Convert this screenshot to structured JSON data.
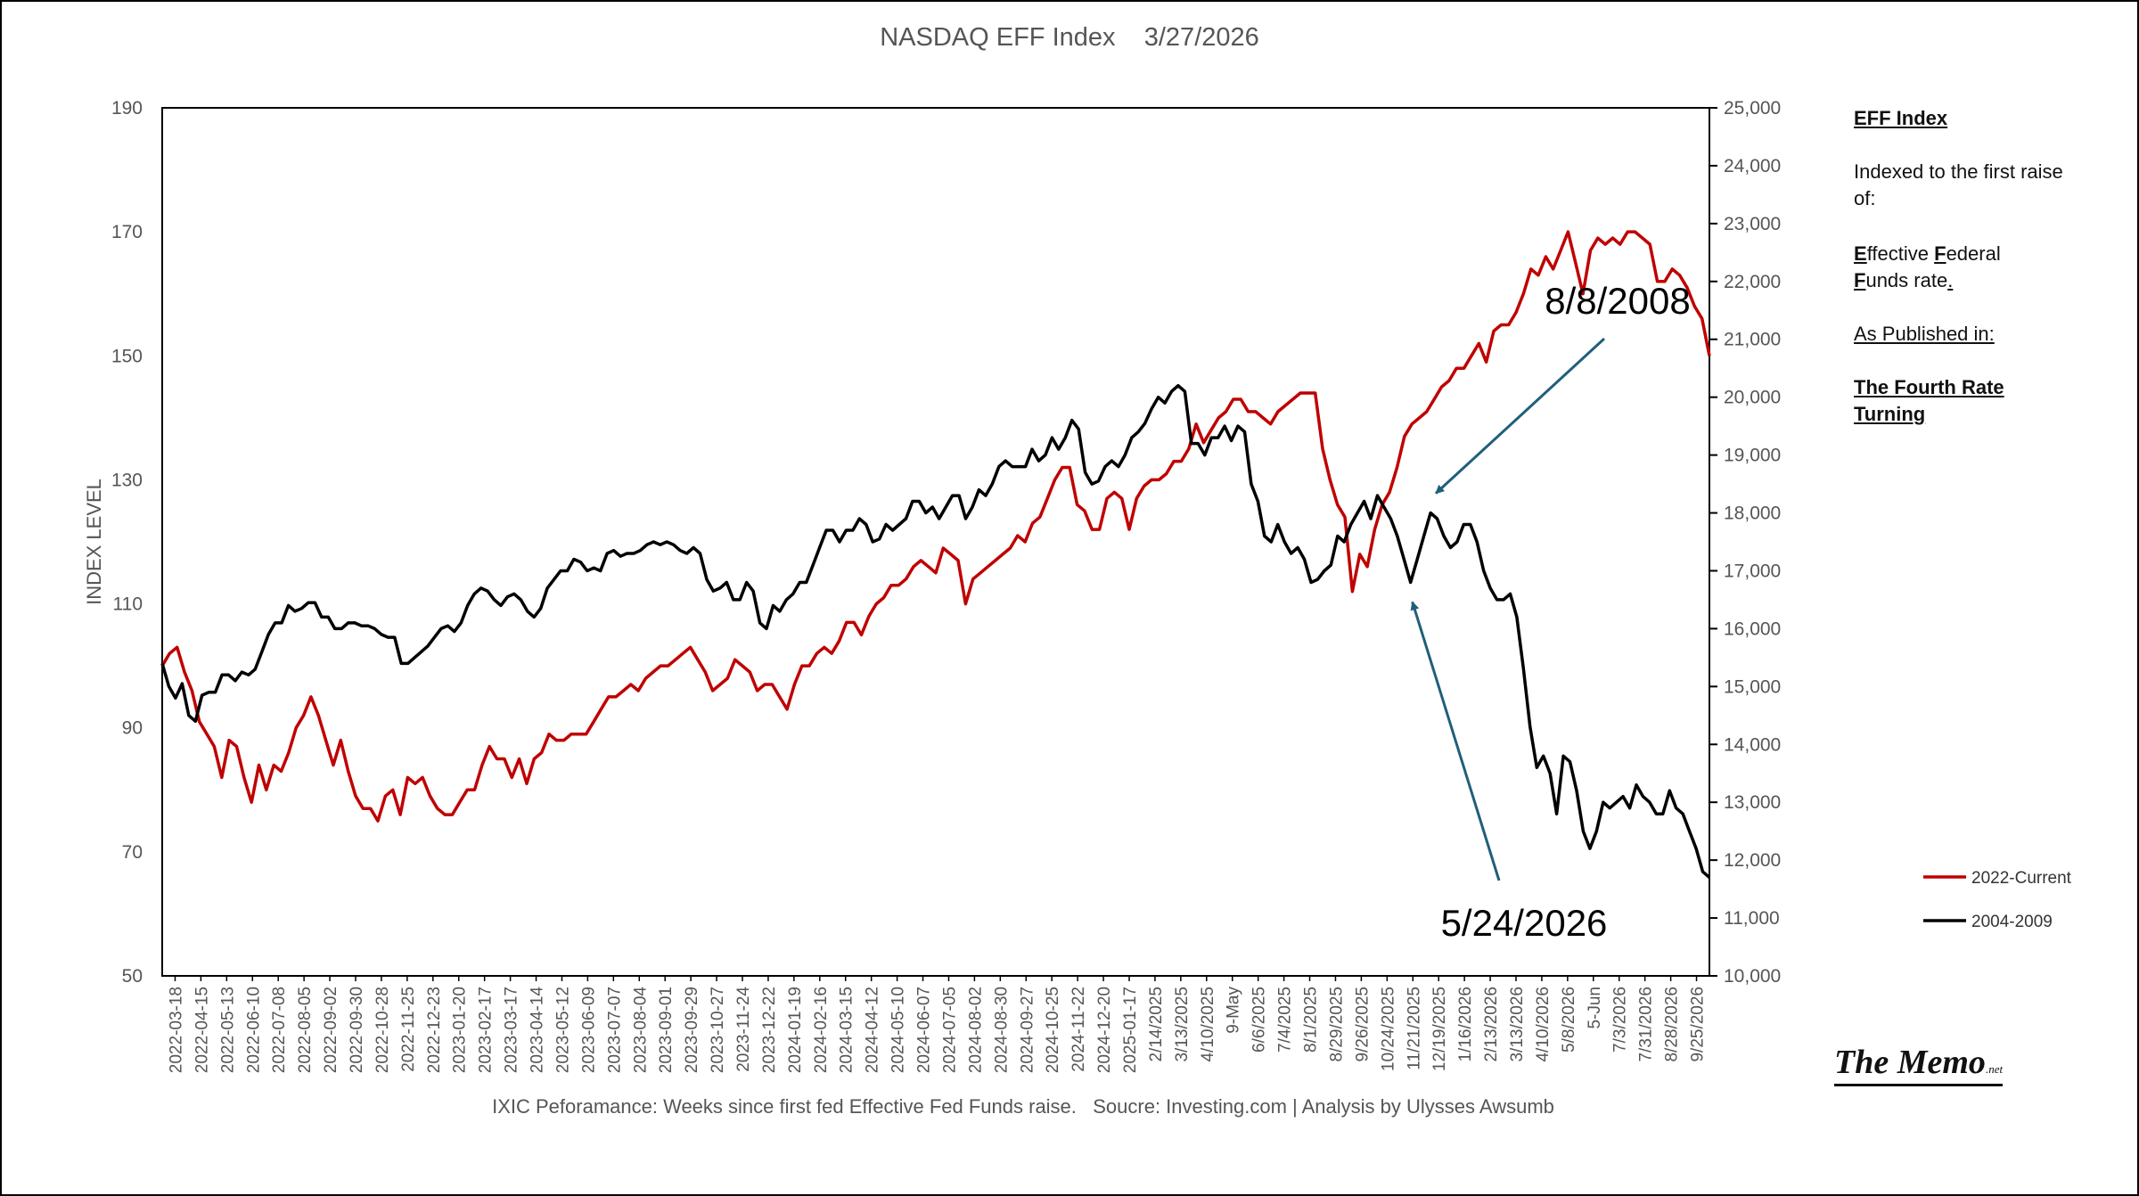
{
  "colors": {
    "series_2022": "#c00000",
    "series_2004": "#000000",
    "arrow": "#1f5f7a",
    "axis_text": "#555555"
  },
  "sidebar": {
    "title": "EFF Index",
    "indexed_text": "Indexed to the first raise of:",
    "effective_lead": "E",
    "effective_rest": "ffective ",
    "federal_lead": "F",
    "federal_rest": "ederal",
    "funds_lead": "F",
    "funds_rest": "unds rate",
    "funds_dot": ".",
    "published": "As Published in:",
    "source_title": "The Fourth Rate Turning"
  },
  "logo": {
    "main": "The Memo",
    "suffix": ".net"
  },
  "chart_data": {
    "type": "line",
    "title": "NASDAQ EFF Index    3/27/2026",
    "footnote": "IXIC Peforamance: Weeks since first fed Effective Fed Funds raise.   Soucre: Investing.com | Analysis by Ulysses Awsumb",
    "ylabel": "INDEX LEVEL",
    "ylim": [
      50,
      190
    ],
    "yticks": [
      50,
      70,
      90,
      110,
      130,
      150,
      170,
      190
    ],
    "y2lim": [
      10000,
      25000
    ],
    "y2ticks": [
      "10,000",
      "11,000",
      "12,000",
      "13,000",
      "14,000",
      "15,000",
      "16,000",
      "17,000",
      "18,000",
      "19,000",
      "20,000",
      "21,000",
      "22,000",
      "23,000",
      "24,000",
      "25,000"
    ],
    "grid": false,
    "legend_position": "bottom-right",
    "x_tick_labels": [
      "2022-03-18",
      "2022-04-15",
      "2022-05-13",
      "2022-06-10",
      "2022-07-08",
      "2022-08-05",
      "2022-09-02",
      "2022-09-30",
      "2022-10-28",
      "2022-11-25",
      "2022-12-23",
      "2023-01-20",
      "2023-02-17",
      "2023-03-17",
      "2023-04-14",
      "2023-05-12",
      "2023-06-09",
      "2023-07-07",
      "2023-08-04",
      "2023-09-01",
      "2023-09-29",
      "2023-10-27",
      "2023-11-24",
      "2023-12-22",
      "2024-01-19",
      "2024-02-16",
      "2024-03-15",
      "2024-04-12",
      "2024-05-10",
      "2024-06-07",
      "2024-07-05",
      "2024-08-02",
      "2024-08-30",
      "2024-09-27",
      "2024-10-25",
      "2024-11-22",
      "2024-12-20",
      "2025-01-17",
      "2/14/2025",
      "3/13/2025",
      "4/10/2025",
      "9-May",
      "6/6/2025",
      "7/4/2025",
      "8/1/2025",
      "8/29/2025",
      "9/26/2025",
      "10/24/2025",
      "11/21/2025",
      "12/19/2025",
      "1/16/2026",
      "2/13/2026",
      "3/13/2026",
      "4/10/2026",
      "5/8/2026",
      "5-Jun",
      "7/3/2026",
      "7/31/2026",
      "8/28/2026",
      "9/25/2026"
    ],
    "series": [
      {
        "name": "2022-Current",
        "axis": "left",
        "color": "#c00000",
        "values": [
          100,
          102,
          103,
          99,
          96,
          91,
          89,
          87,
          82,
          88,
          87,
          82,
          78,
          84,
          80,
          84,
          83,
          86,
          90,
          92,
          95,
          92,
          88,
          84,
          88,
          83,
          79,
          77,
          77,
          75,
          79,
          80,
          76,
          82,
          81,
          82,
          79,
          77,
          76,
          76,
          78,
          80,
          80,
          84,
          87,
          85,
          85,
          82,
          85,
          81,
          85,
          86,
          89,
          88,
          88,
          89,
          89,
          89,
          91,
          93,
          95,
          95,
          96,
          97,
          96,
          98,
          99,
          100,
          100,
          101,
          102,
          103,
          101,
          99,
          96,
          97,
          98,
          101,
          100,
          99,
          96,
          97,
          97,
          95,
          93,
          97,
          100,
          100,
          102,
          103,
          102,
          104,
          107,
          107,
          105,
          108,
          110,
          111,
          113,
          113,
          114,
          116,
          117,
          116,
          115,
          119,
          118,
          117,
          110,
          114,
          115,
          116,
          117,
          118,
          119,
          121,
          120,
          123,
          124,
          127,
          130,
          132,
          132,
          126,
          125,
          122,
          122,
          127,
          128,
          127,
          122,
          127,
          129,
          130,
          130,
          131,
          133,
          133,
          135,
          139,
          136,
          138,
          140,
          141,
          143,
          143,
          141,
          141,
          140,
          139,
          141,
          142,
          143,
          144,
          144,
          144,
          135,
          130,
          126,
          124,
          112,
          118,
          116,
          122,
          126,
          128,
          132,
          137,
          139,
          140,
          141,
          143,
          145,
          146,
          148,
          148,
          150,
          152,
          149,
          154,
          155,
          155,
          157,
          160,
          164,
          163,
          166,
          164,
          167,
          170,
          165,
          160,
          167,
          169,
          168,
          169,
          168,
          170,
          170,
          169,
          168,
          162,
          162,
          164,
          163,
          161,
          158,
          156,
          150
        ]
      },
      {
        "name": "2004-2009",
        "axis": "right",
        "color": "#000000",
        "values": [
          15400,
          15000,
          14800,
          15050,
          14500,
          14400,
          14850,
          14900,
          14900,
          15200,
          15200,
          15100,
          15250,
          15200,
          15300,
          15600,
          15900,
          16100,
          16100,
          16400,
          16300,
          16350,
          16450,
          16450,
          16200,
          16200,
          16000,
          16000,
          16100,
          16100,
          16050,
          16050,
          16000,
          15900,
          15850,
          15850,
          15400,
          15400,
          15500,
          15600,
          15700,
          15850,
          16000,
          16050,
          15950,
          16100,
          16400,
          16600,
          16700,
          16650,
          16500,
          16400,
          16550,
          16600,
          16500,
          16300,
          16200,
          16350,
          16700,
          16850,
          17000,
          17000,
          17200,
          17150,
          17000,
          17050,
          17000,
          17300,
          17350,
          17250,
          17300,
          17300,
          17350,
          17450,
          17500,
          17450,
          17500,
          17450,
          17350,
          17300,
          17400,
          17300,
          16850,
          16650,
          16700,
          16800,
          16500,
          16500,
          16800,
          16650,
          16100,
          16000,
          16400,
          16300,
          16500,
          16600,
          16800,
          16800,
          17100,
          17400,
          17700,
          17700,
          17500,
          17700,
          17700,
          17900,
          17800,
          17500,
          17550,
          17800,
          17700,
          17800,
          17900,
          18200,
          18200,
          18000,
          18100,
          17900,
          18100,
          18300,
          18300,
          17900,
          18100,
          18400,
          18300,
          18500,
          18800,
          18900,
          18800,
          18800,
          18800,
          19100,
          18900,
          19000,
          19300,
          19100,
          19300,
          19600,
          19450,
          18700,
          18500,
          18550,
          18800,
          18900,
          18800,
          19000,
          19300,
          19400,
          19550,
          19800,
          20000,
          19900,
          20100,
          20200,
          20100,
          19200,
          19200,
          19000,
          19300,
          19300,
          19500,
          19250,
          19500,
          19400,
          18500,
          18200,
          17600,
          17500,
          17800,
          17500,
          17300,
          17400,
          17200,
          16800,
          16850,
          17000,
          17100,
          17600,
          17500,
          17800,
          18000,
          18200,
          17900,
          18300,
          18100,
          17900,
          17600,
          17200,
          16800,
          17200,
          17600,
          18000,
          17900,
          17600,
          17400,
          17500,
          17800,
          17800,
          17500,
          17000,
          16700,
          16500,
          16500,
          16600,
          16200,
          15300,
          14300,
          13600,
          13800,
          13500,
          12800,
          13800,
          13700,
          13200,
          12500,
          12200,
          12500,
          13000,
          12900,
          13000,
          13100,
          12900,
          13300,
          13100,
          13000,
          12800,
          12800,
          13200,
          12900,
          12800,
          12500,
          12200,
          11800,
          11700
        ]
      }
    ],
    "annotations": [
      {
        "text": "8/8/2008",
        "series": "2004-2009",
        "value": 18200
      },
      {
        "text": "5/24/2026",
        "series": "2004-2009",
        "value": 16900
      }
    ]
  }
}
